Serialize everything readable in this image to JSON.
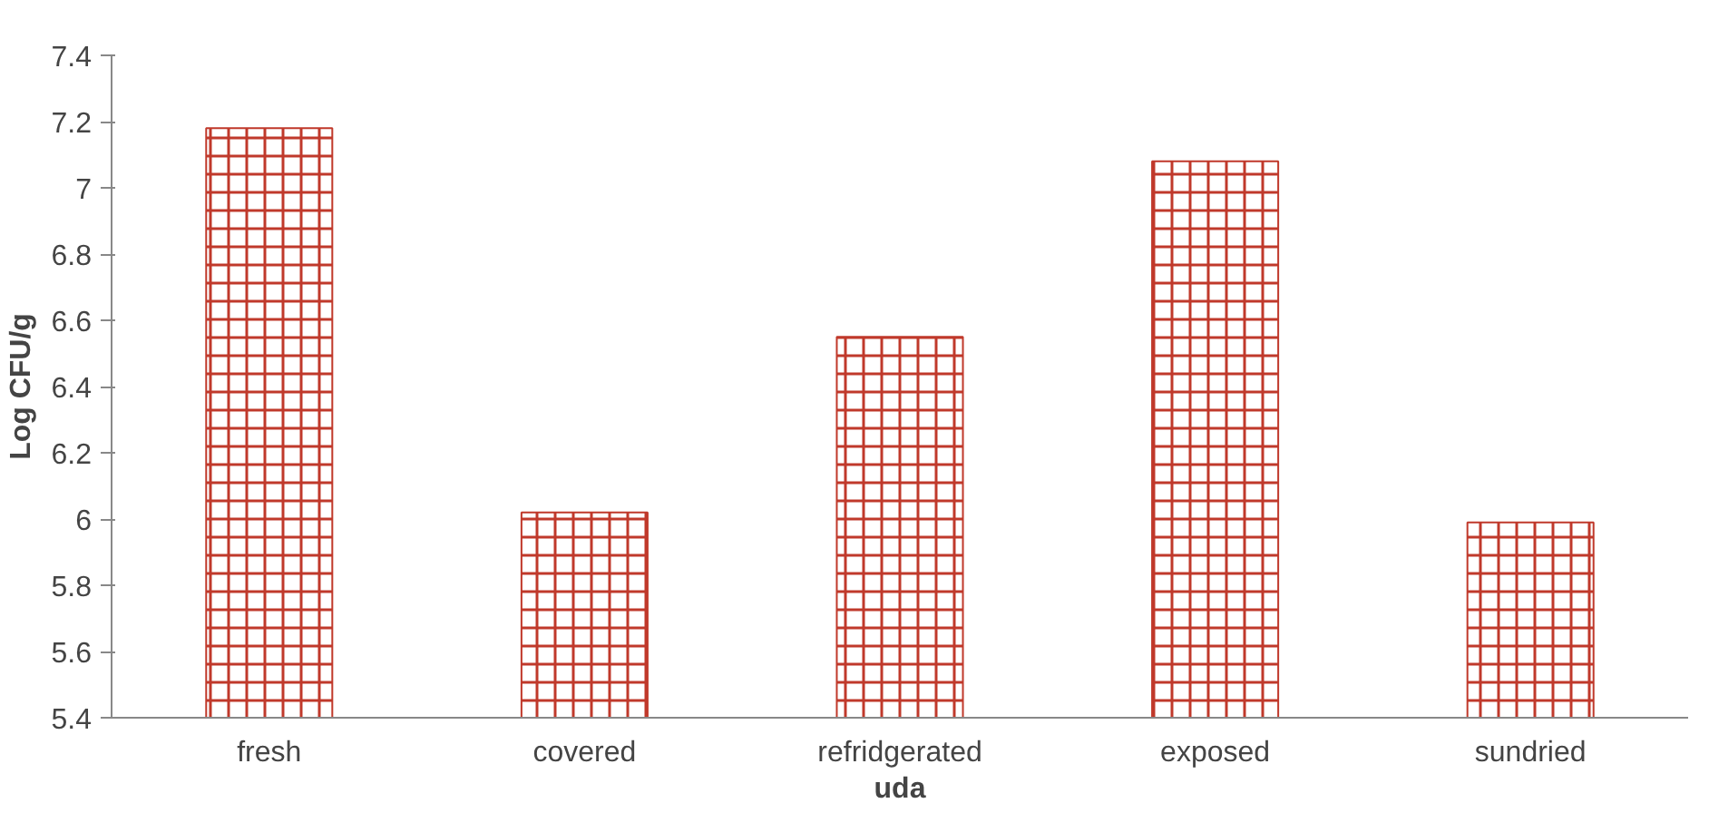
{
  "chart_data": {
    "type": "bar",
    "xlabel": "uda",
    "ylabel": "Log CFU/g",
    "categories": [
      "fresh",
      "covered",
      "refridgerated",
      "exposed",
      "sundried"
    ],
    "values": [
      7.18,
      6.02,
      6.55,
      7.08,
      5.99
    ],
    "color": "#c0392b",
    "ylim": [
      5.4,
      7.4
    ],
    "yticks": [
      5.4,
      5.6,
      5.8,
      6,
      6.2,
      6.4,
      6.6,
      6.8,
      7,
      7.2,
      7.4
    ],
    "grid": false
  }
}
